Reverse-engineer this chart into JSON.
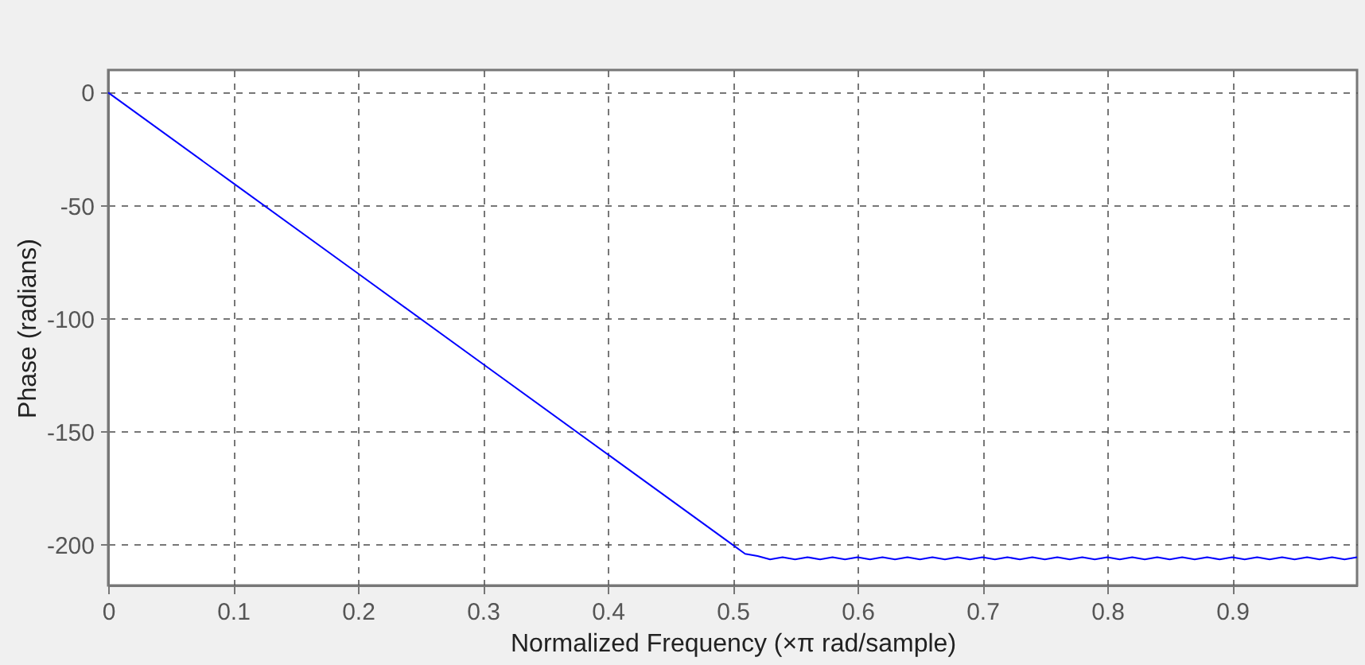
{
  "chart_data": {
    "type": "line",
    "xlabel": "Normalized Frequency (×π rad/sample)",
    "ylabel": "Phase (radians)",
    "x": [
      0,
      0.1,
      0.2,
      0.3,
      0.4,
      0.5,
      0.51,
      0.52,
      0.53,
      0.54,
      0.55,
      0.56,
      0.57,
      0.58,
      0.59,
      0.6,
      0.61,
      0.62,
      0.63,
      0.64,
      0.65,
      0.66,
      0.67,
      0.68,
      0.69,
      0.7,
      0.71,
      0.72,
      0.73,
      0.74,
      0.75,
      0.76,
      0.77,
      0.78,
      0.79,
      0.8,
      0.81,
      0.82,
      0.83,
      0.84,
      0.85,
      0.86,
      0.87,
      0.88,
      0.89,
      0.9,
      0.91,
      0.92,
      0.93,
      0.94,
      0.95,
      0.96,
      0.97,
      0.98,
      0.99,
      1.0
    ],
    "series": [
      {
        "color": "#0000ff",
        "values": [
          0,
          -40,
          -80,
          -120,
          -160,
          -200,
          -204,
          -205,
          -206.5,
          -205.5,
          -206.5,
          -205.5,
          -206.5,
          -205.5,
          -206.5,
          -205.5,
          -206.5,
          -205.5,
          -206.5,
          -205.5,
          -206.5,
          -205.5,
          -206.5,
          -205.5,
          -206.5,
          -205.5,
          -206.5,
          -205.5,
          -206.5,
          -205.5,
          -206.5,
          -205.5,
          -206.5,
          -205.5,
          -206.5,
          -205.5,
          -206.5,
          -205.5,
          -206.5,
          -205.5,
          -206.5,
          -205.5,
          -206.5,
          -205.5,
          -206.5,
          -205.5,
          -206.5,
          -205.5,
          -206.5,
          -205.5,
          -206.5,
          -205.5,
          -206.5,
          -205.5,
          -206.5,
          -205.5
        ]
      }
    ],
    "xlim": [
      0,
      1
    ],
    "xticks": [
      0,
      0.1,
      0.2,
      0.3,
      0.4,
      0.5,
      0.6,
      0.7,
      0.8,
      0.9
    ],
    "ylim": [
      -218,
      10
    ],
    "yticks": [
      -200,
      -150,
      -100,
      -50,
      0
    ],
    "grid": true,
    "marker": "none",
    "line_style": "solid"
  }
}
